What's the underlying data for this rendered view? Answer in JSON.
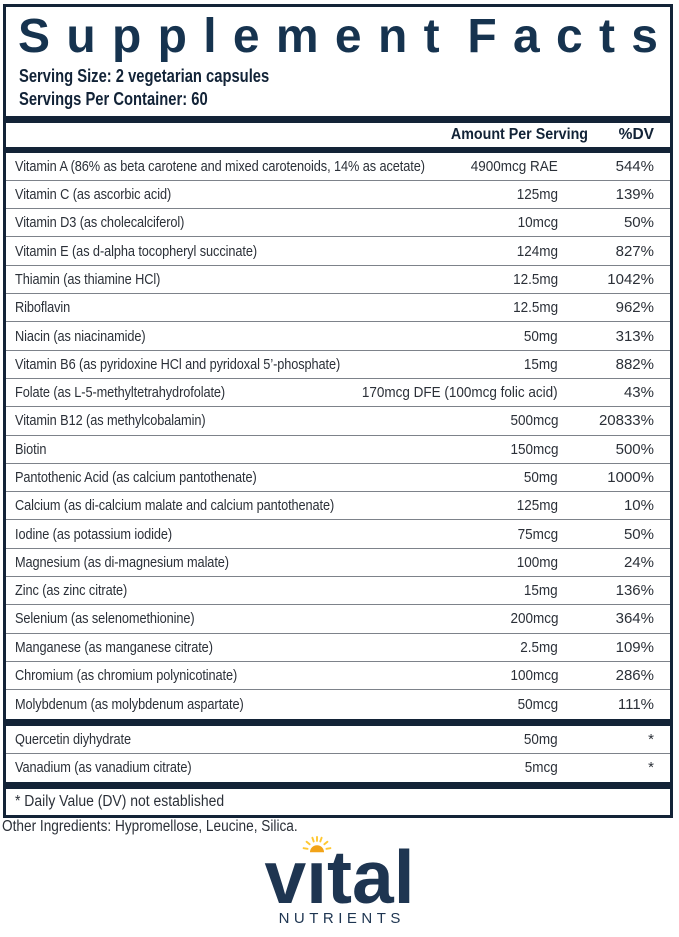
{
  "label": {
    "title": "Supplement Facts",
    "title_words": [
      "Supplement",
      "Facts"
    ],
    "serving_size": "Serving Size: 2 vegetarian capsules",
    "servings_per_container": "Servings Per Container: 60",
    "columns": {
      "amount": "Amount Per Serving",
      "dv": "%DV"
    },
    "rows": [
      {
        "name": "Vitamin A (86% as beta carotene and mixed carotenoids, 14% as acetate)",
        "amount": "4900mcg RAE",
        "dv": "544%"
      },
      {
        "name": "Vitamin C (as ascorbic acid)",
        "amount": "125mg",
        "dv": "139%"
      },
      {
        "name": "Vitamin D3 (as cholecalciferol)",
        "amount": "10mcg",
        "dv": "50%"
      },
      {
        "name": "Vitamin E (as d-alpha tocopheryl succinate)",
        "amount": "124mg",
        "dv": "827%"
      },
      {
        "name": "Thiamin (as thiamine HCl)",
        "amount": "12.5mg",
        "dv": "1042%"
      },
      {
        "name": "Riboflavin",
        "amount": "12.5mg",
        "dv": "962%"
      },
      {
        "name": "Niacin (as niacinamide)",
        "amount": "50mg",
        "dv": "313%"
      },
      {
        "name": "Vitamin B6 (as pyridoxine HCl and pyridoxal 5’-phosphate)",
        "amount": "15mg",
        "dv": "882%"
      },
      {
        "name": "Folate (as L-5-methyltetrahydrofolate)",
        "amount": "170mcg DFE (100mcg folic acid)",
        "dv": "43%"
      },
      {
        "name": "Vitamin B12 (as methylcobalamin)",
        "amount": "500mcg",
        "dv": "20833%"
      },
      {
        "name": "Biotin",
        "amount": "150mcg",
        "dv": "500%"
      },
      {
        "name": "Pantothenic Acid (as calcium pantothenate)",
        "amount": "50mg",
        "dv": "1000%"
      },
      {
        "name": "Calcium (as di-calcium malate and calcium pantothenate)",
        "amount": "125mg",
        "dv": "10%"
      },
      {
        "name": "Iodine (as potassium iodide)",
        "amount": "75mcg",
        "dv": "50%"
      },
      {
        "name": "Magnesium (as di-magnesium malate)",
        "amount": "100mg",
        "dv": "24%"
      },
      {
        "name": "Zinc (as zinc citrate)",
        "amount": "15mg",
        "dv": "136%"
      },
      {
        "name": "Selenium (as selenomethionine)",
        "amount": "200mcg",
        "dv": "364%"
      },
      {
        "name": "Manganese (as manganese citrate)",
        "amount": "2.5mg",
        "dv": "109%"
      },
      {
        "name": "Chromium (as chromium polynicotinate)",
        "amount": "100mcg",
        "dv": "286%"
      },
      {
        "name": "Molybdenum (as molybdenum aspartate)",
        "amount": "50mcg",
        "dv": "111%"
      }
    ],
    "extra_rows": [
      {
        "name": "Quercetin diyhydrate",
        "amount": "50mg",
        "dv": "*"
      },
      {
        "name": "Vanadium (as vanadium citrate)",
        "amount": "5mcg",
        "dv": "*"
      }
    ],
    "footnote": "* Daily Value (DV) not established"
  },
  "other_ingredients": "Other Ingredients: Hypromellose, Leucine, Silica.",
  "logo": {
    "word": "vital",
    "word_parts": {
      "left": "v",
      "i": "ı",
      "right": "tal"
    },
    "subtext": "NUTRIENTS",
    "icon": "sun-icon"
  },
  "colors": {
    "navy": "#16334f",
    "bar": "#132337",
    "text_dark": "#122337",
    "row_text": "#2b3038",
    "divider": "#7d828a",
    "logo_navy": "#1e3551",
    "sun_body": "#f2a318",
    "sun_rays": "#ffc832"
  }
}
